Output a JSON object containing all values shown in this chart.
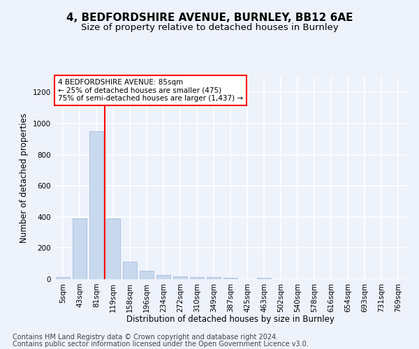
{
  "title": "4, BEDFORDSHIRE AVENUE, BURNLEY, BB12 6AE",
  "subtitle": "Size of property relative to detached houses in Burnley",
  "xlabel": "Distribution of detached houses by size in Burnley",
  "ylabel": "Number of detached properties",
  "footer_line1": "Contains HM Land Registry data © Crown copyright and database right 2024.",
  "footer_line2": "Contains public sector information licensed under the Open Government Licence v3.0.",
  "categories": [
    "5sqm",
    "43sqm",
    "81sqm",
    "119sqm",
    "158sqm",
    "196sqm",
    "234sqm",
    "272sqm",
    "310sqm",
    "349sqm",
    "387sqm",
    "425sqm",
    "463sqm",
    "502sqm",
    "540sqm",
    "578sqm",
    "616sqm",
    "654sqm",
    "693sqm",
    "731sqm",
    "769sqm"
  ],
  "values": [
    15,
    390,
    950,
    390,
    110,
    52,
    25,
    20,
    13,
    13,
    10,
    0,
    10,
    0,
    0,
    0,
    0,
    0,
    0,
    0,
    0
  ],
  "bar_color": "#c8d9ee",
  "bar_edgecolor": "#9ab5d8",
  "ylim": [
    0,
    1300
  ],
  "yticks": [
    0,
    200,
    400,
    600,
    800,
    1000,
    1200
  ],
  "red_line_x": 2.5,
  "annotation_line1": "4 BEDFORDSHIRE AVENUE: 85sqm",
  "annotation_line2": "← 25% of detached houses are smaller (475)",
  "annotation_line3": "75% of semi-detached houses are larger (1,437) →",
  "annotation_box_color": "white",
  "annotation_box_edgecolor": "red",
  "background_color": "#eef2fb",
  "plot_bg_color": "#eef2fb",
  "grid_color": "#ffffff",
  "title_fontsize": 11,
  "subtitle_fontsize": 9.5,
  "axis_label_fontsize": 8.5,
  "tick_fontsize": 7.5,
  "annotation_fontsize": 7.5,
  "footer_fontsize": 7.0
}
